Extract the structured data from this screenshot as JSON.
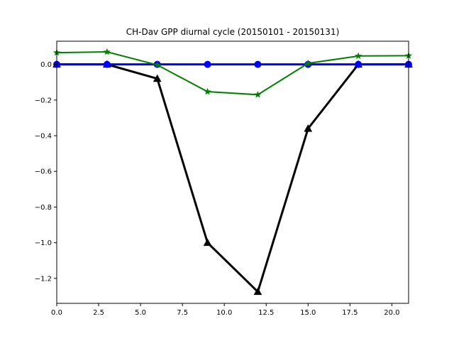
{
  "chart_data": {
    "type": "line",
    "title": "CH-Dav GPP diurnal cycle (20150101 - 20150131)",
    "xlabel": "",
    "ylabel": "",
    "xlim": [
      0,
      21
    ],
    "ylim": [
      -1.34,
      0.13
    ],
    "x_ticks": [
      0,
      2.5,
      5,
      7.5,
      10,
      12.5,
      15,
      17.5,
      20
    ],
    "x_tick_labels": [
      "0.0",
      "2.5",
      "5.0",
      "7.5",
      "10.0",
      "12.5",
      "15.0",
      "17.5",
      "20.0"
    ],
    "y_ticks": [
      0,
      -0.2,
      -0.4,
      -0.6,
      -0.8,
      -1.0,
      -1.2
    ],
    "y_tick_labels": [
      "0.0",
      "−0.2",
      "−0.4",
      "−0.6",
      "−0.8",
      "−1.0",
      "−1.2"
    ],
    "grid": false,
    "x": [
      0,
      3,
      6,
      9,
      12,
      15,
      18,
      21
    ],
    "series": [
      {
        "values": [
          0.0,
          0.0,
          -0.08,
          -1.0,
          -1.275,
          -0.36,
          0.0,
          0.0
        ],
        "color": "#000000",
        "marker": "triangle",
        "line_width": 3
      },
      {
        "values": [
          0.0,
          0.0,
          0.0,
          0.0,
          0.0,
          0.0,
          0.0,
          0.0
        ],
        "color": "#0000ff",
        "marker": "circle",
        "line_width": 3
      },
      {
        "values": [
          0.066,
          0.07,
          -0.003,
          -0.153,
          -0.17,
          0.006,
          0.047,
          0.049
        ],
        "color": "#008000",
        "marker": "star",
        "line_width": 2
      }
    ]
  }
}
